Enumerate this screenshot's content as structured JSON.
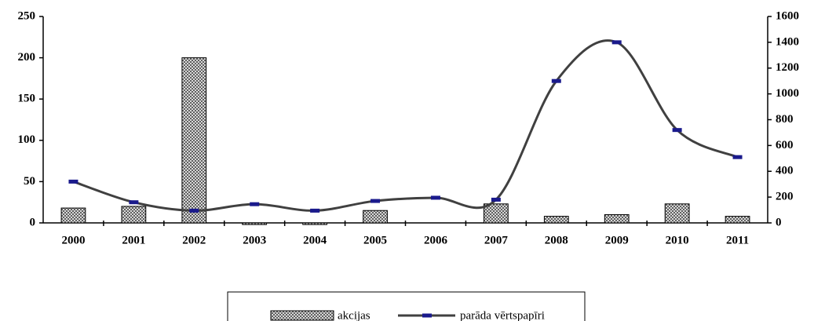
{
  "chart_data": {
    "type": "bar-line",
    "categories": [
      "2000",
      "2001",
      "2002",
      "2003",
      "2004",
      "2005",
      "2006",
      "2007",
      "2008",
      "2009",
      "2010",
      "2011"
    ],
    "series": [
      {
        "name": "akcijas",
        "type": "bar",
        "color": "#b0b0b0",
        "values": [
          18,
          20,
          200,
          -2,
          -2,
          15,
          0,
          23,
          8,
          10,
          23,
          8
        ]
      },
      {
        "name": "parāda vērtspapīri",
        "type": "line",
        "axis": "y2",
        "color": "#404040",
        "marker_color": "#1a1a8c",
        "values": [
          320,
          160,
          95,
          145,
          95,
          170,
          195,
          180,
          1100,
          1400,
          720,
          510
        ]
      }
    ],
    "ylim": [
      0,
      250
    ],
    "yticks": [
      0,
      50,
      100,
      150,
      200,
      250
    ],
    "y2lim": [
      0,
      1600
    ],
    "y2ticks": [
      0,
      200,
      400,
      600,
      800,
      1000,
      1200,
      1400,
      1600
    ],
    "grid": false,
    "legend": "bottom"
  }
}
